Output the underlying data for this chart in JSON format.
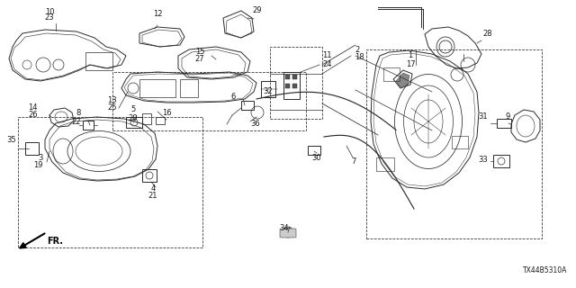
{
  "bg_color": "#ffffff",
  "diagram_code": "TX44B5310A",
  "line_color": "#2a2a2a",
  "text_color": "#1a1a1a",
  "label_fs": 6.0
}
